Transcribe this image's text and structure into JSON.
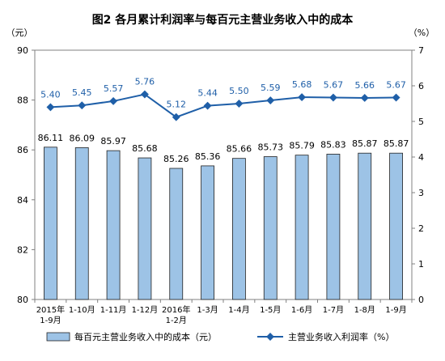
{
  "chart_data": {
    "type": "bar+line",
    "title": "图2  各月累计利润率与每百元主营业务收入中的成本",
    "y_left_unit": "（元）",
    "y_right_unit": "（%）",
    "ylim_left": [
      80,
      90
    ],
    "ylim_right": [
      0,
      7
    ],
    "y_left_ticks": [
      80,
      82,
      84,
      86,
      88,
      90
    ],
    "y_right_ticks": [
      0,
      1,
      2,
      3,
      4,
      5,
      6,
      7
    ],
    "categories": [
      [
        "2015年",
        "1-9月"
      ],
      [
        "1-10月"
      ],
      [
        "1-11月"
      ],
      [
        "1-12月"
      ],
      [
        "2016年",
        "1-2月"
      ],
      [
        "1-3月"
      ],
      [
        "1-4月"
      ],
      [
        "1-5月"
      ],
      [
        "1-6月"
      ],
      [
        "1-7月"
      ],
      [
        "1-8月"
      ],
      [
        "1-9月"
      ]
    ],
    "series": [
      {
        "name": "每百元主营业务收入中的成本（元）",
        "type": "bar",
        "axis": "left",
        "color": "#9dc3e6",
        "values": [
          86.11,
          86.09,
          85.97,
          85.68,
          85.26,
          85.36,
          85.66,
          85.73,
          85.79,
          85.83,
          85.87,
          85.87
        ]
      },
      {
        "name": "主营业务收入利润率（%）",
        "type": "line",
        "axis": "right",
        "color": "#1f5fa8",
        "values": [
          5.4,
          5.45,
          5.57,
          5.76,
          5.12,
          5.44,
          5.5,
          5.59,
          5.68,
          5.67,
          5.66,
          5.67
        ]
      }
    ],
    "grid": false,
    "legend_position": "bottom"
  }
}
